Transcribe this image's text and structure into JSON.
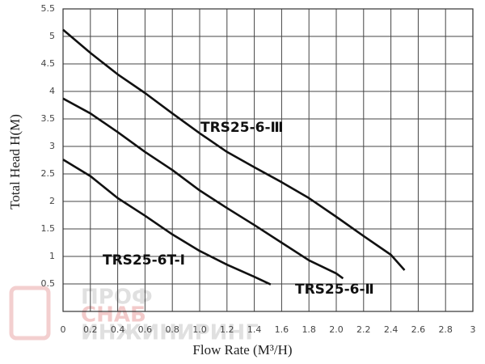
{
  "chart_data": {
    "type": "line",
    "xlabel": "Flow Rate (M³/H)",
    "ylabel": "Total Head H(M)",
    "xlim": [
      0,
      3
    ],
    "xticks": [
      0,
      0.2,
      0.4,
      0.6,
      0.8,
      {
        "value": 1,
        "label": "1.0"
      },
      1.2,
      1.4,
      1.6,
      1.8,
      {
        "value": 2,
        "label": "2.0"
      },
      2.2,
      2.4,
      2.6,
      2.8,
      3
    ],
    "ylim": [
      0,
      5.5
    ],
    "yticks": [
      0.5,
      1,
      1.5,
      2,
      2.5,
      3,
      3.5,
      4,
      4.5,
      5,
      5.5
    ],
    "grid": true,
    "series": [
      {
        "name": "TRS25-6-Ⅲ",
        "color": "#111111",
        "x": [
          0,
          0.2,
          0.4,
          0.6,
          0.8,
          1.0,
          1.2,
          1.4,
          1.6,
          1.8,
          2.0,
          2.2,
          2.4,
          2.5
        ],
        "values": [
          5.12,
          4.7,
          4.31,
          3.97,
          3.6,
          3.24,
          2.9,
          2.62,
          2.35,
          2.06,
          1.72,
          1.37,
          1.03,
          0.75
        ]
      },
      {
        "name": "TRS25-6-Ⅱ",
        "color": "#111111",
        "x": [
          0,
          0.2,
          0.4,
          0.6,
          0.8,
          1.0,
          1.2,
          1.4,
          1.6,
          1.8,
          2.0,
          2.05
        ],
        "values": [
          3.87,
          3.6,
          3.26,
          2.9,
          2.57,
          2.2,
          1.88,
          1.57,
          1.25,
          0.93,
          0.69,
          0.6
        ]
      },
      {
        "name": "TRS25-6T-Ⅰ",
        "color": "#111111",
        "x": [
          0,
          0.2,
          0.4,
          0.6,
          0.8,
          1.0,
          1.2,
          1.4,
          1.52
        ],
        "values": [
          2.76,
          2.46,
          2.06,
          1.74,
          1.4,
          1.1,
          0.85,
          0.63,
          0.49
        ]
      }
    ],
    "watermark": [
      "ПРОФ",
      "СНАБ",
      "ИНЖИНИРИНГ"
    ]
  }
}
